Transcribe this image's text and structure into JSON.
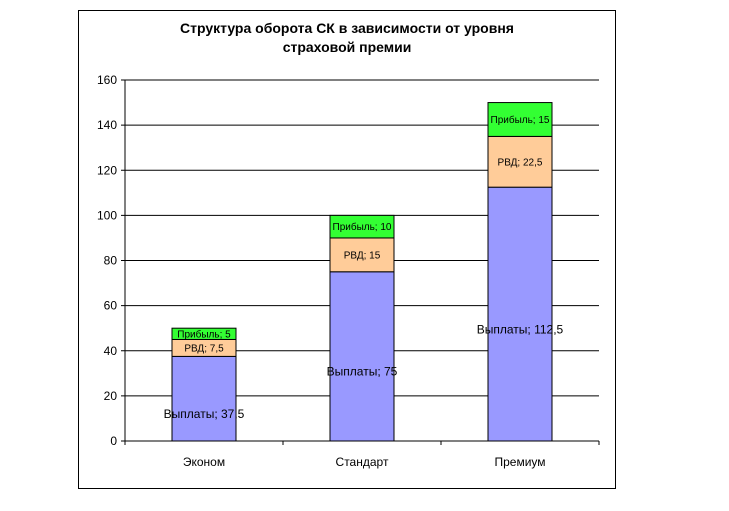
{
  "chart_data": {
    "type": "bar",
    "stacked": true,
    "title_lines": [
      "Структура оборота СК в зависимости от уровня",
      "страховой премии"
    ],
    "categories": [
      "Эконом",
      "Стандарт",
      "Премиум"
    ],
    "series": [
      {
        "name": "Выплаты",
        "values": [
          37.5,
          75,
          112.5
        ],
        "color": "#9999ff",
        "labels": [
          "Выплаты; 37,5",
          "Выплаты; 75",
          "Выплаты; 112,5"
        ]
      },
      {
        "name": "РВД",
        "values": [
          7.5,
          15,
          22.5
        ],
        "color": "#ffcc99",
        "labels": [
          "РВД; 7,5",
          "РВД; 15",
          "РВД; 22,5"
        ]
      },
      {
        "name": "Прибыль",
        "values": [
          5,
          10,
          15
        ],
        "color": "#33ff33",
        "labels": [
          "Прибыль; 5",
          "Прибыль; 10",
          "Прибыль; 15"
        ]
      }
    ],
    "ylim": [
      0,
      160
    ],
    "yticks": [
      "0",
      "20",
      "40",
      "60",
      "80",
      "100",
      "120",
      "140",
      "160"
    ],
    "ytick_values": [
      0,
      20,
      40,
      60,
      80,
      100,
      120,
      140,
      160
    ],
    "grid": true,
    "legend": "none"
  }
}
